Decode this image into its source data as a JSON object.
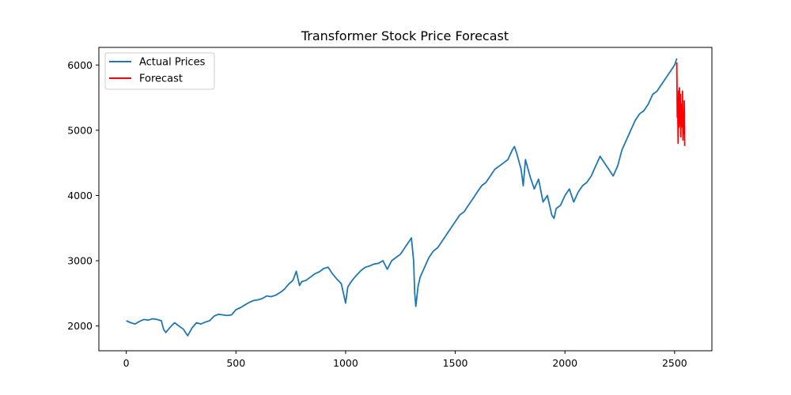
{
  "chart_data": {
    "type": "line",
    "title": "Transformer Stock Price Forecast",
    "xlabel": "",
    "ylabel": "",
    "xlim": [
      -125,
      2670
    ],
    "ylim": [
      1620,
      6270
    ],
    "x_ticks": [
      0,
      500,
      1000,
      1500,
      2000,
      2500
    ],
    "y_ticks": [
      2000,
      3000,
      4000,
      5000,
      6000
    ],
    "grid": false,
    "legend_position": "top-left",
    "series": [
      {
        "name": "Actual Prices",
        "color": "#1f77b4",
        "x": [
          0,
          20,
          40,
          60,
          80,
          100,
          120,
          140,
          160,
          170,
          180,
          200,
          220,
          240,
          260,
          280,
          300,
          320,
          340,
          360,
          380,
          400,
          420,
          440,
          460,
          480,
          500,
          520,
          540,
          560,
          580,
          600,
          620,
          640,
          660,
          680,
          700,
          720,
          740,
          760,
          775,
          790,
          800,
          820,
          840,
          860,
          880,
          900,
          920,
          940,
          960,
          980,
          990,
          1000,
          1010,
          1030,
          1050,
          1070,
          1090,
          1110,
          1130,
          1150,
          1170,
          1190,
          1210,
          1230,
          1250,
          1270,
          1290,
          1300,
          1310,
          1315,
          1320,
          1325,
          1330,
          1340,
          1360,
          1380,
          1400,
          1420,
          1440,
          1460,
          1480,
          1500,
          1520,
          1540,
          1560,
          1580,
          1600,
          1620,
          1640,
          1660,
          1680,
          1700,
          1720,
          1740,
          1760,
          1770,
          1780,
          1800,
          1810,
          1820,
          1840,
          1860,
          1880,
          1900,
          1920,
          1940,
          1950,
          1960,
          1980,
          2000,
          2020,
          2040,
          2060,
          2080,
          2100,
          2120,
          2140,
          2160,
          2180,
          2200,
          2220,
          2240,
          2260,
          2280,
          2300,
          2320,
          2340,
          2360,
          2380,
          2400,
          2420,
          2440,
          2460,
          2480,
          2500,
          2510
        ],
        "y": [
          2080,
          2050,
          2030,
          2070,
          2100,
          2090,
          2110,
          2100,
          2080,
          1950,
          1900,
          1980,
          2050,
          2000,
          1950,
          1850,
          1970,
          2050,
          2030,
          2060,
          2080,
          2150,
          2180,
          2170,
          2160,
          2170,
          2250,
          2280,
          2320,
          2360,
          2390,
          2400,
          2420,
          2460,
          2450,
          2470,
          2510,
          2560,
          2640,
          2700,
          2840,
          2620,
          2680,
          2700,
          2750,
          2800,
          2830,
          2880,
          2900,
          2800,
          2720,
          2650,
          2500,
          2350,
          2600,
          2700,
          2780,
          2850,
          2900,
          2920,
          2950,
          2960,
          3000,
          2870,
          3000,
          3050,
          3100,
          3200,
          3300,
          3350,
          3000,
          2500,
          2300,
          2450,
          2600,
          2750,
          2900,
          3050,
          3150,
          3200,
          3300,
          3400,
          3500,
          3600,
          3700,
          3750,
          3850,
          3950,
          4050,
          4150,
          4200,
          4300,
          4400,
          4450,
          4500,
          4550,
          4700,
          4750,
          4650,
          4400,
          4150,
          4550,
          4300,
          4100,
          4250,
          3900,
          4000,
          3700,
          3650,
          3800,
          3850,
          4000,
          4100,
          3900,
          4050,
          4150,
          4200,
          4300,
          4450,
          4600,
          4500,
          4400,
          4300,
          4450,
          4700,
          4850,
          5000,
          5150,
          5250,
          5300,
          5400,
          5550,
          5600,
          5700,
          5800,
          5900,
          6000,
          6100
        ]
      },
      {
        "name": "Forecast",
        "color": "#ff0000",
        "x": [
          2510,
          2512,
          2514,
          2516,
          2518,
          2520,
          2522,
          2524,
          2526,
          2528,
          2530,
          2532,
          2534,
          2536,
          2538,
          2540,
          2542,
          2544,
          2546
        ],
        "y": [
          6040,
          5200,
          5500,
          4800,
          5600,
          5050,
          5650,
          5100,
          5550,
          4900,
          5400,
          5250,
          5050,
          5600,
          4850,
          5200,
          4950,
          5450,
          4760
        ]
      }
    ]
  }
}
